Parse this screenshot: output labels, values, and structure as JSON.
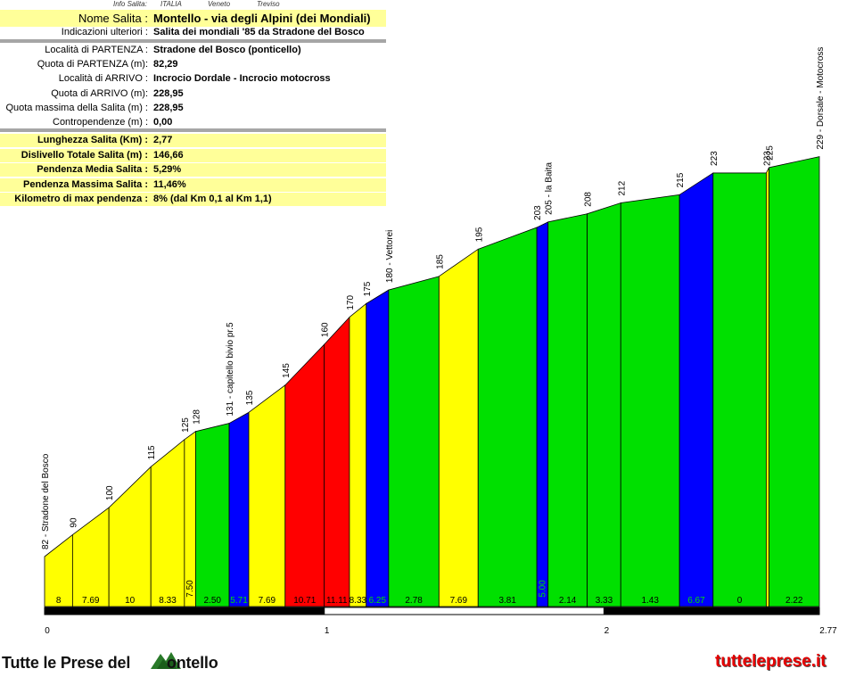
{
  "info": {
    "headers": [
      {
        "text": "Info Salita:",
        "x": 127
      },
      {
        "text": "ITALIA",
        "x": 180
      },
      {
        "text": "Veneto",
        "x": 233
      },
      {
        "text": "Treviso",
        "x": 288
      }
    ],
    "title_label": "Nome Salita :",
    "title_value": "Montello - via degli Alpini (dei Mondiali)",
    "extra_label": "Indicazioni ulteriori :",
    "extra_value": "Salita dei mondiali '85  da Stradone del Bosco",
    "rows": [
      {
        "label": "Località di PARTENZA :",
        "value": "Stradone del Bosco (ponticello)"
      },
      {
        "label": "Quota di PARTENZA (m):",
        "value": "82,29"
      },
      {
        "label": "Località di ARRIVO :",
        "value": "Incrocio Dordale - Incrocio motocross"
      },
      {
        "label": "Quota di ARRIVO (m):",
        "value": "228,95"
      },
      {
        "label": "Quota massima della Salita (m) :",
        "value": "228,95"
      },
      {
        "label": "Contropendenze (m) :",
        "value": "0,00"
      }
    ],
    "stats": [
      {
        "label": "Lunghezza Salita (Km) :",
        "value": "2,77"
      },
      {
        "label": "Dislivello Totale Salita (m) :",
        "value": "146,66"
      },
      {
        "label": "Pendenza Media Salita :",
        "value": "5,29%"
      },
      {
        "label": "Pendenza Massima Salita :",
        "value": "11,46%"
      },
      {
        "label": "Kilometro di max pendenza :",
        "value": "8%         (dal Km 0,1 al Km 1,1)"
      }
    ]
  },
  "chart_data": {
    "type": "area",
    "title": "Montello - via degli Alpini (dei Mondiali)",
    "x_unit": "km",
    "y_unit": "m",
    "xlim": [
      0,
      2.77
    ],
    "x_ticks": [
      "0",
      "1",
      "2",
      "2.77"
    ],
    "ylim": [
      0,
      235
    ],
    "colors": {
      "yellow": "#ffff00",
      "green": "#00e000",
      "blue": "#0000ff",
      "red": "#ff0000"
    },
    "points": [
      {
        "x": 0.0,
        "y": 82,
        "label": "82 - Stradone del Bosco"
      },
      {
        "x": 0.1,
        "y": 90,
        "label": "90"
      },
      {
        "x": 0.23,
        "y": 100,
        "label": "100"
      },
      {
        "x": 0.38,
        "y": 115,
        "label": "115"
      },
      {
        "x": 0.5,
        "y": 125,
        "label": "125"
      },
      {
        "x": 0.54,
        "y": 128,
        "label": "128"
      },
      {
        "x": 0.66,
        "y": 131,
        "label": "131 - capitello bivio pr.5"
      },
      {
        "x": 0.73,
        "y": 135,
        "label": "135"
      },
      {
        "x": 0.86,
        "y": 145,
        "label": "145"
      },
      {
        "x": 1.0,
        "y": 160,
        "label": "160"
      },
      {
        "x": 1.09,
        "y": 170,
        "label": "170"
      },
      {
        "x": 1.15,
        "y": 175,
        "label": "175"
      },
      {
        "x": 1.23,
        "y": 180,
        "label": "180 - Vettorei"
      },
      {
        "x": 1.41,
        "y": 185,
        "label": "185"
      },
      {
        "x": 1.55,
        "y": 195,
        "label": "195"
      },
      {
        "x": 1.76,
        "y": 203,
        "label": "203"
      },
      {
        "x": 1.8,
        "y": 205,
        "label": "205 - la Baita"
      },
      {
        "x": 1.94,
        "y": 208,
        "label": "208"
      },
      {
        "x": 2.06,
        "y": 212,
        "label": "212"
      },
      {
        "x": 2.27,
        "y": 215,
        "label": "215"
      },
      {
        "x": 2.39,
        "y": 223,
        "label": "223"
      },
      {
        "x": 2.58,
        "y": 223,
        "label": "223"
      },
      {
        "x": 2.59,
        "y": 225,
        "label": "225"
      },
      {
        "x": 2.77,
        "y": 229,
        "label": "229 - Dorsale - Motocross"
      }
    ],
    "segments": [
      {
        "grade": "8",
        "color": "yellow"
      },
      {
        "grade": "7.69",
        "color": "yellow"
      },
      {
        "grade": "10",
        "color": "yellow"
      },
      {
        "grade": "8.33",
        "color": "yellow"
      },
      {
        "grade": "7.50",
        "color": "yellow"
      },
      {
        "grade": "2.50",
        "color": "green"
      },
      {
        "grade": "5.71",
        "color": "blue"
      },
      {
        "grade": "7.69",
        "color": "yellow"
      },
      {
        "grade": "10.71",
        "color": "red"
      },
      {
        "grade": "11.11",
        "color": "red"
      },
      {
        "grade": "8.33",
        "color": "yellow"
      },
      {
        "grade": "6.25",
        "color": "blue"
      },
      {
        "grade": "2.78",
        "color": "green"
      },
      {
        "grade": "7.69",
        "color": "yellow"
      },
      {
        "grade": "3.81",
        "color": "green"
      },
      {
        "grade": "5.00",
        "color": "blue"
      },
      {
        "grade": "2.14",
        "color": "green"
      },
      {
        "grade": "3.33",
        "color": "green"
      },
      {
        "grade": "1.43",
        "color": "green"
      },
      {
        "grade": "6.67",
        "color": "blue"
      },
      {
        "grade": "0",
        "color": "green"
      },
      {
        "grade": "",
        "color": "yellow"
      },
      {
        "grade": "2.22",
        "color": "green"
      }
    ]
  },
  "footer": {
    "brand_prefix": "Tutte le Prese del ",
    "brand_suffix": "ontello",
    "site": "tutteleprese.it"
  }
}
